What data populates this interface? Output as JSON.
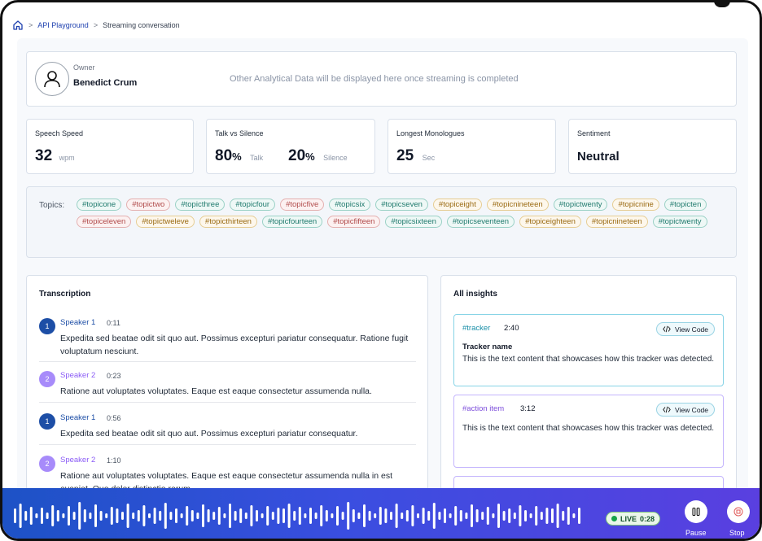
{
  "breadcrumb": {
    "link": "API Playground",
    "sep": ">",
    "current": "Streaming conversation"
  },
  "owner": {
    "label": "Owner",
    "name": "Benedict Crum",
    "message": "Other Analytical Data will be displayed here once streaming is completed"
  },
  "stats": {
    "speech_speed": {
      "label": "Speech Speed",
      "value": "32",
      "unit": "wpm"
    },
    "talk_silence": {
      "label": "Talk vs Silence",
      "talk_value": "80",
      "talk_pct": "%",
      "talk_label": "Talk",
      "silence_value": "20",
      "silence_pct": "%",
      "silence_label": "Silence"
    },
    "monologue": {
      "label": "Longest Monologues",
      "value": "25",
      "unit": "Sec"
    },
    "sentiment": {
      "label": "Sentiment",
      "value": "Neutral"
    }
  },
  "topics": {
    "label": "Topics:",
    "items": [
      {
        "text": "#topicone",
        "color": "green"
      },
      {
        "text": "#topictwo",
        "color": "red"
      },
      {
        "text": "#topicthree",
        "color": "green"
      },
      {
        "text": "#topicfour",
        "color": "green"
      },
      {
        "text": "#topicfive",
        "color": "red"
      },
      {
        "text": "#topicsix",
        "color": "green"
      },
      {
        "text": "#topicseven",
        "color": "green"
      },
      {
        "text": "#topiceight",
        "color": "amber"
      },
      {
        "text": "#topicnineteen",
        "color": "amber"
      },
      {
        "text": "#topictwenty",
        "color": "green"
      },
      {
        "text": "#topicnine",
        "color": "amber"
      },
      {
        "text": "#topicten",
        "color": "green"
      },
      {
        "text": "#topiceleven",
        "color": "red"
      },
      {
        "text": "#topictweleve",
        "color": "amber"
      },
      {
        "text": "#topicthirteen",
        "color": "amber"
      },
      {
        "text": "#topicfourteen",
        "color": "green"
      },
      {
        "text": "#topicfifteen",
        "color": "red"
      },
      {
        "text": "#topicsixteen",
        "color": "green"
      },
      {
        "text": "#topicseventeen",
        "color": "green"
      },
      {
        "text": "#topiceighteen",
        "color": "amber"
      },
      {
        "text": "#topicnineteen",
        "color": "amber"
      },
      {
        "text": "#topictwenty",
        "color": "green"
      }
    ]
  },
  "transcription": {
    "title": "Transcription",
    "items": [
      {
        "badge": "1",
        "speaker": "Speaker 1",
        "time": "0:11",
        "text": "Expedita sed beatae odit sit quo aut. Possimus excepturi pariatur consequatur. Ratione fugit voluptatum nesciunt."
      },
      {
        "badge": "2",
        "speaker": "Speaker 2",
        "time": "0:23",
        "text": "Ratione aut voluptates voluptates. Eaque est eaque consectetur assumenda nulla."
      },
      {
        "badge": "1",
        "speaker": "Speaker 1",
        "time": "0:56",
        "text": "Expedita sed beatae odit sit quo aut. Possimus excepturi pariatur consequatur."
      },
      {
        "badge": "2",
        "speaker": "Speaker 2",
        "time": "1:10",
        "text": "Ratione aut voluptates voluptates. Eaque est eaque consectetur assumenda nulla in est eveniet. Quo dolor distinctio rerum."
      }
    ]
  },
  "insights": {
    "title": "All insights",
    "code_label": "View Code",
    "items": [
      {
        "tag": "#tracker",
        "time": "2:40",
        "name": "Tracker name",
        "text": "This is the text content that showcases how this tracker was detected."
      },
      {
        "tag": "#action item",
        "time": "3:12",
        "name": "",
        "text": "This is the text content that showcases how this tracker was detected."
      }
    ]
  },
  "player": {
    "live_label": "LIVE",
    "live_time": "0:28",
    "pause_label": "Pause",
    "stop_label": "Stop"
  },
  "colors": {
    "accent": "#1d4ea6",
    "player_start": "#1d52c6",
    "player_end": "#5a3fe0"
  }
}
